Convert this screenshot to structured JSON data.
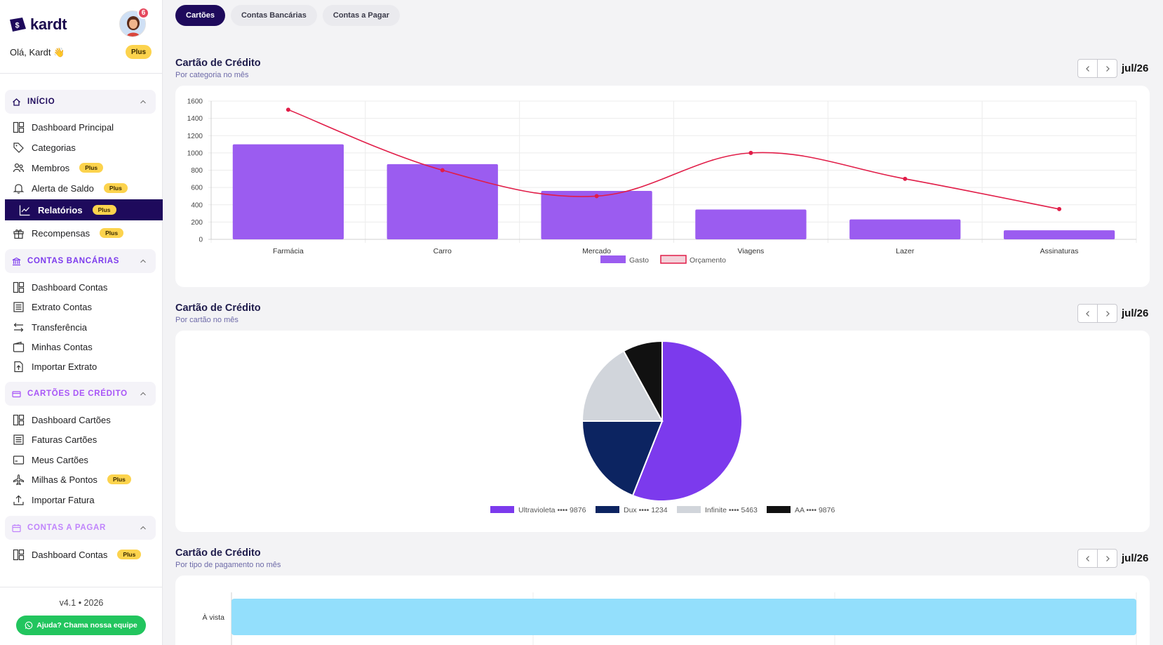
{
  "app": {
    "name": "kardt"
  },
  "user": {
    "greeting": "Olá, Kardt 👋",
    "notifications": "6",
    "plan": "Plus"
  },
  "sidebar": {
    "sections": [
      {
        "label": "INÍCIO",
        "color": "#1e0a5c",
        "items": [
          {
            "label": "Dashboard Principal",
            "plus": ""
          },
          {
            "label": "Categorias",
            "plus": ""
          },
          {
            "label": "Membros",
            "plus": "Plus"
          },
          {
            "label": "Alerta de Saldo",
            "plus": "Plus"
          },
          {
            "label": "Relatórios",
            "plus": "Plus",
            "active": true
          },
          {
            "label": "Recompensas",
            "plus": "Plus"
          }
        ]
      },
      {
        "label": "CONTAS BANCÁRIAS",
        "color": "#7c3aed",
        "items": [
          {
            "label": "Dashboard Contas"
          },
          {
            "label": "Extrato Contas"
          },
          {
            "label": "Transferência"
          },
          {
            "label": "Minhas Contas"
          },
          {
            "label": "Importar Extrato"
          }
        ]
      },
      {
        "label": "CARTÕES DE CRÉDITO",
        "color": "#a855f7",
        "items": [
          {
            "label": "Dashboard Cartões"
          },
          {
            "label": "Faturas Cartões"
          },
          {
            "label": "Meus Cartões"
          },
          {
            "label": "Milhas & Pontos",
            "plus": "Plus"
          },
          {
            "label": "Importar Fatura"
          }
        ]
      },
      {
        "label": "CONTAS A PAGAR",
        "color": "#c084fc",
        "items": [
          {
            "label": "Dashboard Contas",
            "plus": "Plus"
          }
        ]
      }
    ],
    "version": "v4.1 • 2026",
    "help": "Ajuda? Chama nossa equipe"
  },
  "tabs": [
    {
      "label": "Cartões",
      "active": true
    },
    {
      "label": "Contas Bancárias",
      "active": false
    },
    {
      "label": "Contas a Pagar",
      "active": false
    }
  ],
  "cards": [
    {
      "title": "Cartão de Crédito",
      "subtitle": "Por categoria no mês",
      "period": "jul/26"
    },
    {
      "title": "Cartão de Crédito",
      "subtitle": "Por cartão no mês",
      "period": "jul/26"
    },
    {
      "title": "Cartão de Crédito",
      "subtitle": "Por tipo de pagamento no mês",
      "period": "jul/26"
    }
  ],
  "chart_data": [
    {
      "type": "bar",
      "categories": [
        "Farmácia",
        "Carro",
        "Mercado",
        "Viagens",
        "Lazer",
        "Assinaturas"
      ],
      "series": [
        {
          "name": "Gasto",
          "type": "bar",
          "color": "#9b5cf0",
          "values": [
            1100,
            870,
            560,
            345,
            230,
            105
          ]
        },
        {
          "name": "Orçamento",
          "type": "line",
          "color": "#e11d48",
          "values": [
            1500,
            800,
            500,
            1000,
            700,
            350
          ]
        }
      ],
      "ylim": [
        0,
        1600
      ],
      "yticks": [
        0,
        200,
        400,
        600,
        800,
        1000,
        1200,
        1400,
        1600
      ],
      "legend": "bottom",
      "grid": true
    },
    {
      "type": "pie",
      "labels": [
        "Ultravioleta •••• 9876",
        "Dux •••• 1234",
        "Infinite •••• 5463",
        "AA •••• 9876"
      ],
      "values": [
        56,
        19,
        17,
        8
      ],
      "colors": [
        "#7c3aed",
        "#0c2461",
        "#d1d5db",
        "#111111"
      ],
      "legend": "bottom"
    },
    {
      "type": "bar",
      "orientation": "horizontal",
      "categories": [
        "À vista"
      ],
      "values": [
        100
      ],
      "color": "#93dffc",
      "grid": true
    }
  ]
}
